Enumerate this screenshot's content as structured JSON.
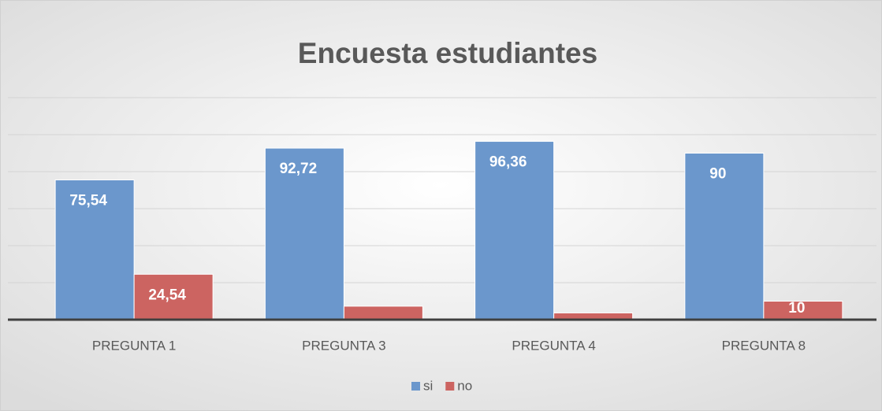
{
  "chart_data": {
    "type": "bar",
    "title": "Encuesta estudiantes",
    "categories": [
      "PREGUNTA 1",
      "PREGUNTA 3",
      "PREGUNTA 4",
      "PREGUNTA 8"
    ],
    "series": [
      {
        "name": "si",
        "color": "#6b97cc",
        "values": [
          75.54,
          92.72,
          96.36,
          90
        ],
        "value_labels": [
          "75,54",
          "92,72",
          "96,36",
          "90"
        ]
      },
      {
        "name": "no",
        "color": "#cc6461",
        "values": [
          24.54,
          7.28,
          3.64,
          10
        ],
        "value_labels": [
          "24,54",
          null,
          null,
          "10"
        ]
      }
    ],
    "ylim": [
      0,
      120
    ],
    "yticks": [
      0,
      20,
      40,
      60,
      80,
      100,
      120
    ],
    "ytick_labels": false,
    "grid": true,
    "legend": "bottom"
  }
}
